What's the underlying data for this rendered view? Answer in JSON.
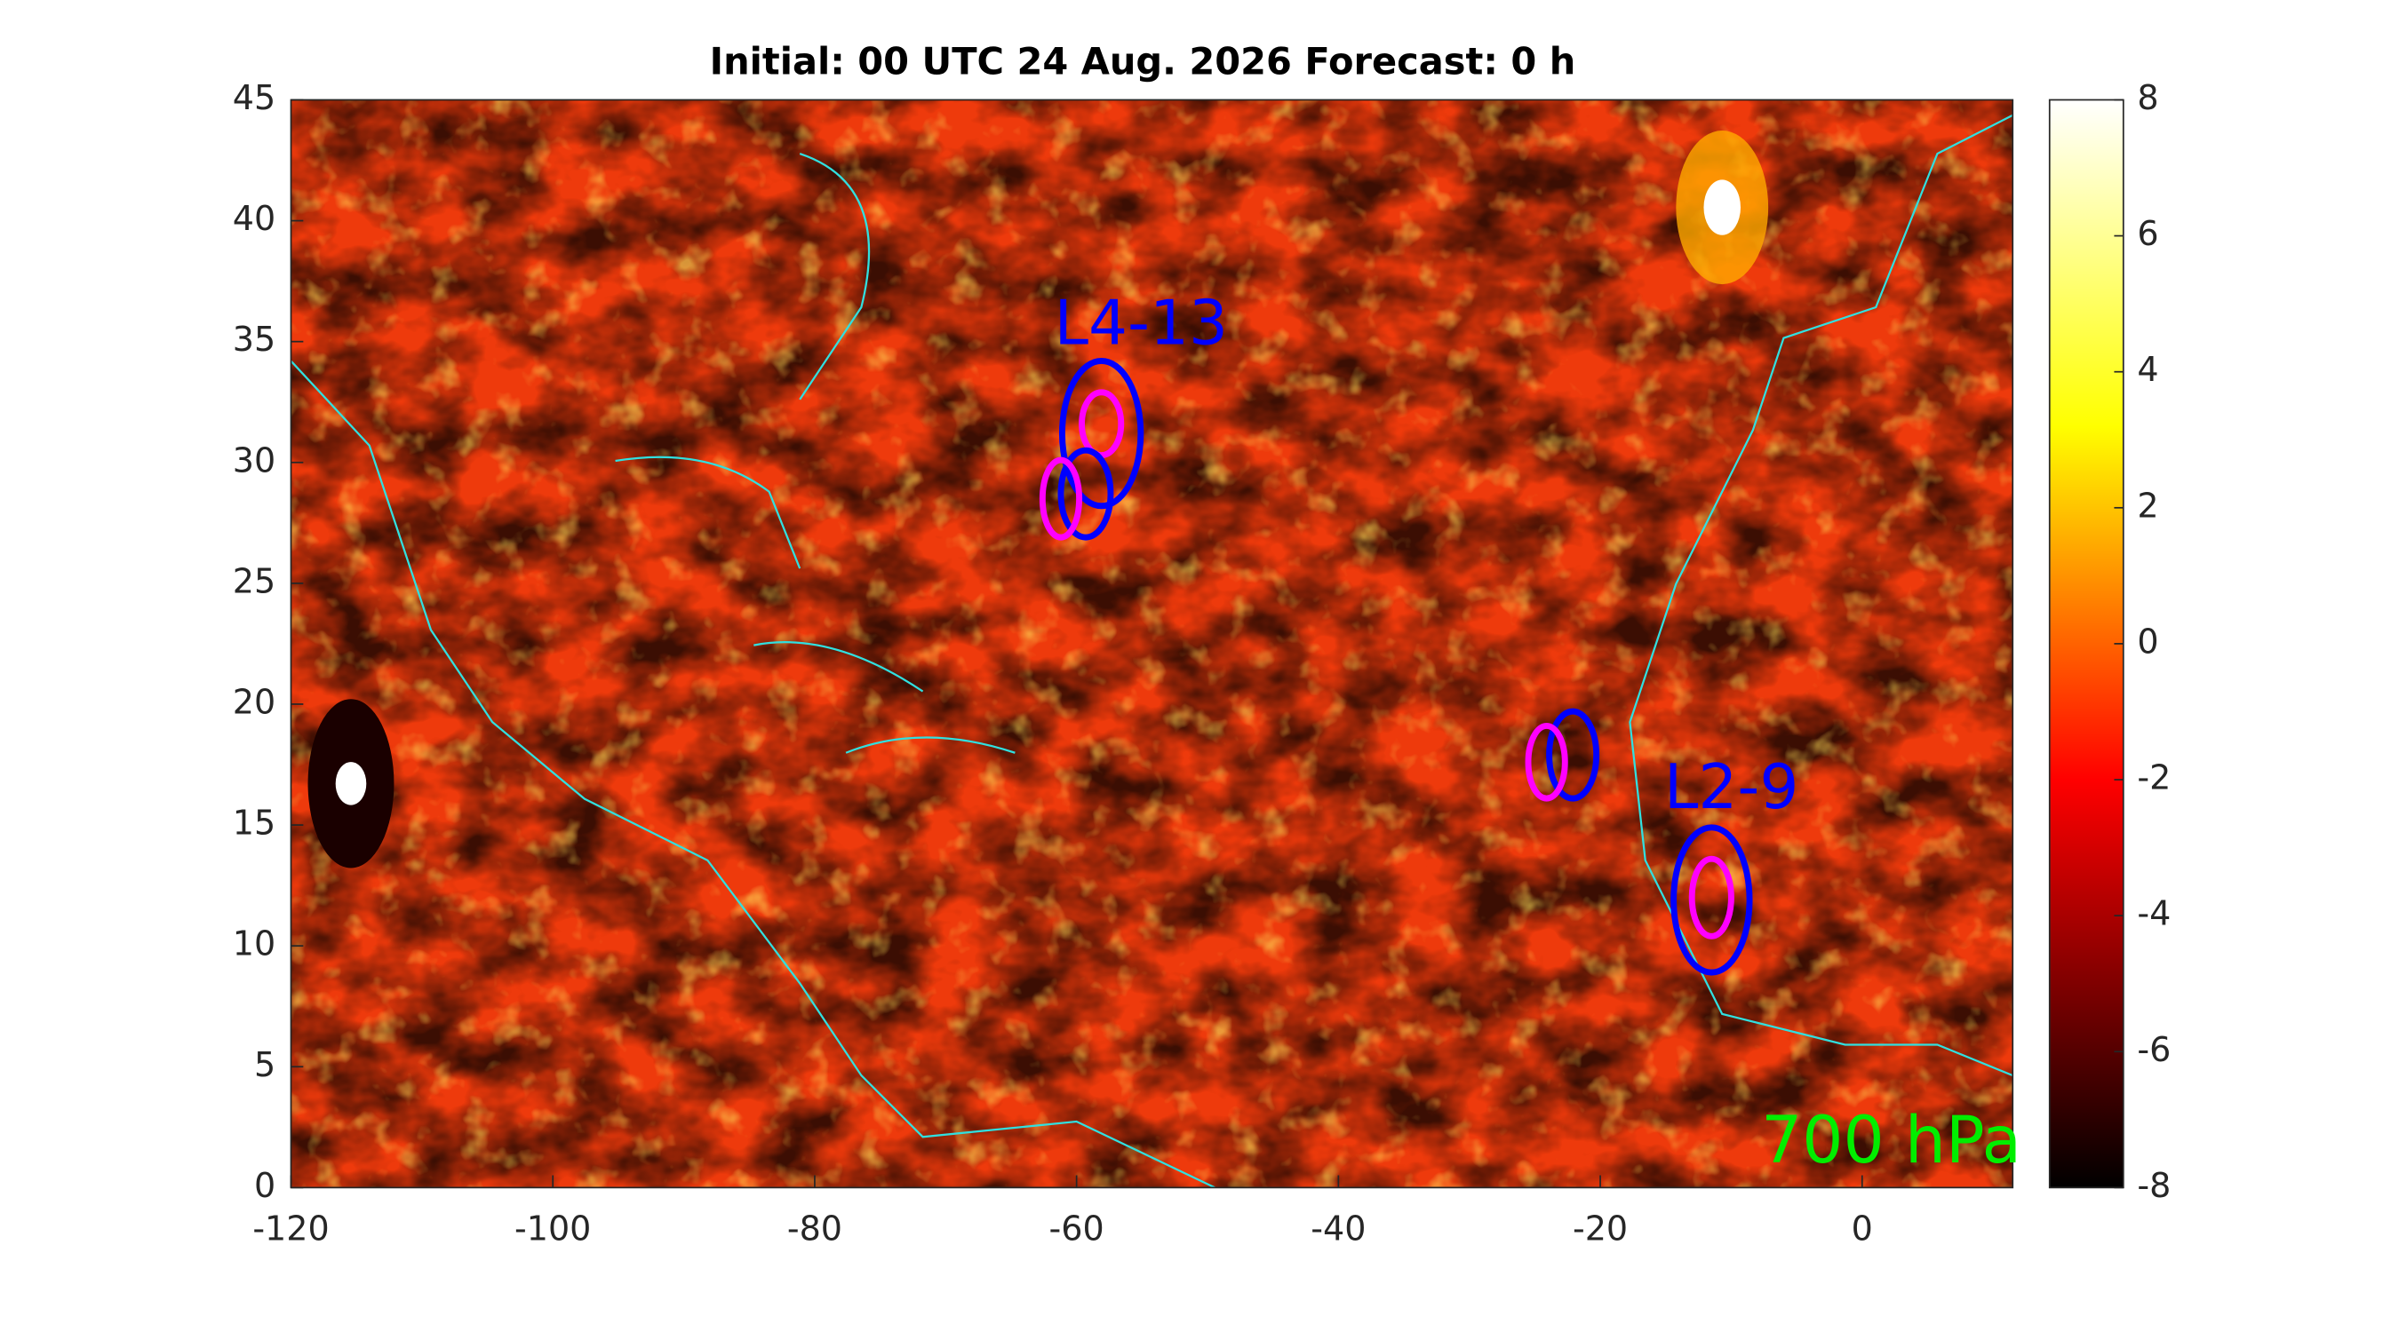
{
  "chart_data": {
    "type": "map",
    "title": "Initial: 00 UTC 24 Aug. 2026 Forecast: 0 h",
    "xlim": [
      -120,
      11.5
    ],
    "ylim": [
      0,
      45
    ],
    "xticks": [
      -120,
      -100,
      -80,
      -60,
      -40,
      -20,
      0
    ],
    "yticks": [
      0,
      5,
      10,
      15,
      20,
      25,
      30,
      35,
      40,
      45
    ],
    "clim": [
      -8,
      8
    ],
    "cticks": [
      -8,
      -6,
      -4,
      -2,
      0,
      2,
      4,
      6,
      8
    ],
    "colormap": "hot",
    "level_label": "700 hPa",
    "level_color": "#00ee00",
    "annotations": [
      {
        "text": "L4-13",
        "color": "#0000ff"
      },
      {
        "text": "L2-9",
        "color": "#0000ff"
      }
    ],
    "ellipses": [
      {
        "cx": -58.1,
        "cy": 31.2,
        "rx": 3.0,
        "ry": 3.0,
        "color": "#0000ff"
      },
      {
        "cx": -58.1,
        "cy": 31.6,
        "rx": 1.5,
        "ry": 1.3,
        "color": "#ff00ff"
      },
      {
        "cx": -59.3,
        "cy": 28.7,
        "rx": 1.9,
        "ry": 1.8,
        "color": "#0000ff"
      },
      {
        "cx": -61.2,
        "cy": 28.5,
        "rx": 1.4,
        "ry": 1.6,
        "color": "#ff00ff"
      },
      {
        "cx": -22.1,
        "cy": 17.9,
        "rx": 1.8,
        "ry": 1.8,
        "color": "#0000ff"
      },
      {
        "cx": -24.1,
        "cy": 17.6,
        "rx": 1.4,
        "ry": 1.5,
        "color": "#ff00ff"
      },
      {
        "cx": -11.5,
        "cy": 11.9,
        "rx": 2.9,
        "ry": 3.0,
        "color": "#0000ff"
      },
      {
        "cx": -11.5,
        "cy": 12.0,
        "rx": 1.5,
        "ry": 1.6,
        "color": "#ff00ff"
      }
    ]
  }
}
